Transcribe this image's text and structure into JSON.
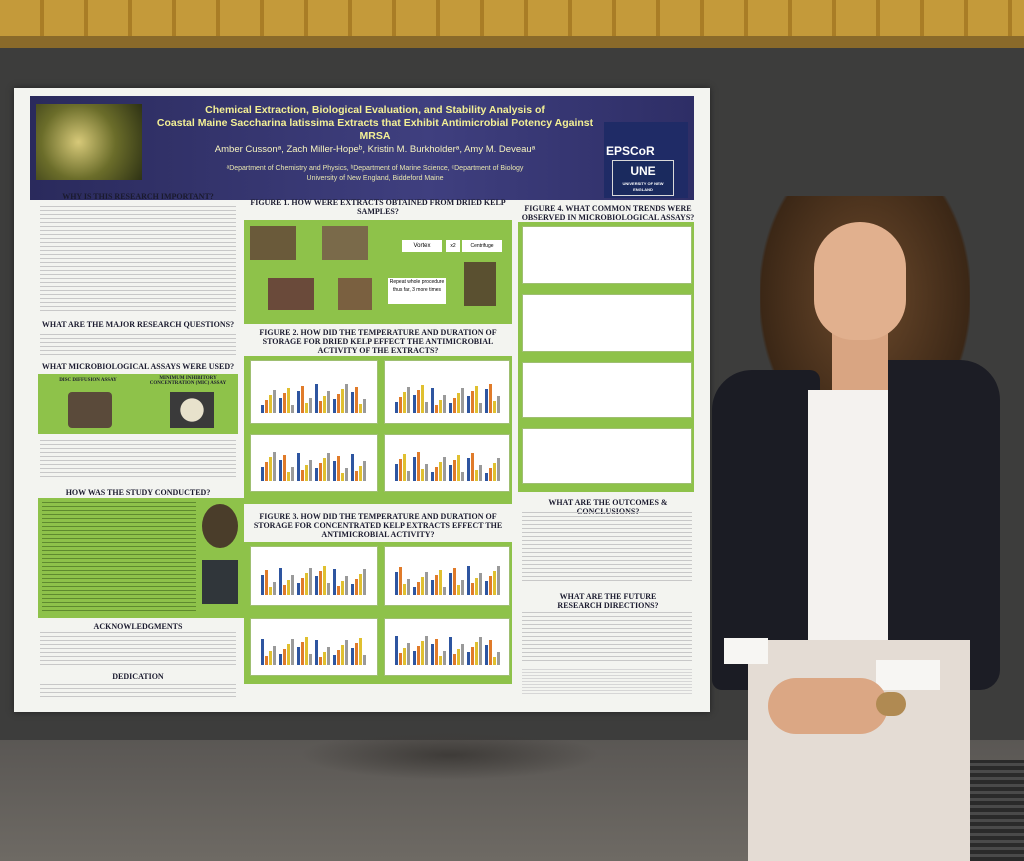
{
  "poster": {
    "title_line1": "Chemical Extraction, Biological Evaluation, and Stability Analysis of",
    "title_line2": "Coastal Maine Saccharina latissima Extracts that Exhibit Antimicrobial Potency Against MRSA",
    "authors": "Amber Cussonᵃ, Zach Miller-Hopeᵇ, Kristin M. Burkholderᵃ, Amy M. Deveauᵃ",
    "affiliation_line1": "ᵃDepartment of Chemistry and Physics, ᵇDepartment of Marine Science, ᶜDepartment of Biology",
    "affiliation_line2": "University of New England, Biddeford Maine",
    "logo_epscor": "EPSCoR",
    "logo_une": "UNE",
    "logo_une_sub": "UNIVERSITY OF NEW ENGLAND",
    "sections": {
      "why": "WHY IS THIS RESEARCH IMPORTANT?",
      "questions": "WHAT ARE THE MAJOR RESEARCH QUESTIONS?",
      "assays": "WHAT MICROBIOLOGICAL ASSAYS WERE USED?",
      "disc": "DISC DIFFUSION ASSAY",
      "mic": "MINIMUM INHIBITORY CONCENTRATION (MIC) ASSAY",
      "how": "HOW WAS THE STUDY CONDUCTED?",
      "ack": "ACKNOWLEDGMENTS",
      "dedication": "DEDICATION",
      "fig1": "FIGURE 1. HOW WERE EXTRACTS OBTAINED FROM DRIED KELP SAMPLES?",
      "fig2": "FIGURE 2. HOW DID THE TEMPERATURE AND DURATION OF STORAGE FOR DRIED KELP EFFECT THE ANTIMICROBIAL ACTIVITY OF THE EXTRACTS?",
      "fig3": "FIGURE 3. HOW DID THE TEMPERATURE AND DURATION OF STORAGE FOR CONCENTRATED KELP EXTRACTS EFFECT THE ANTIMICROBIAL ACTIVITY?",
      "fig4": "FIGURE 4. WHAT COMMON TRENDS WERE OBSERVED IN MICROBIOLOGICAL ASSAYS?",
      "outcomes": "WHAT ARE THE OUTCOMES & CONCLUSIONS?",
      "future": "WHAT ARE THE FUTURE RESEARCH DIRECTIONS?"
    },
    "fig1_labels": {
      "vortex": "Vortex",
      "x2": "x2",
      "centrifuge": "Centrifuge",
      "repeat": "Repeat whole procedure thus far, 3 more times"
    }
  },
  "colors": {
    "banner": "#2e2e66",
    "title_text": "#f3f095",
    "green_panel": "#8ec24a",
    "bar_blue": "#2e55a0",
    "bar_orange": "#e07b2a",
    "bar_yellow": "#e0c030",
    "bar_gray": "#9a9a9a"
  }
}
